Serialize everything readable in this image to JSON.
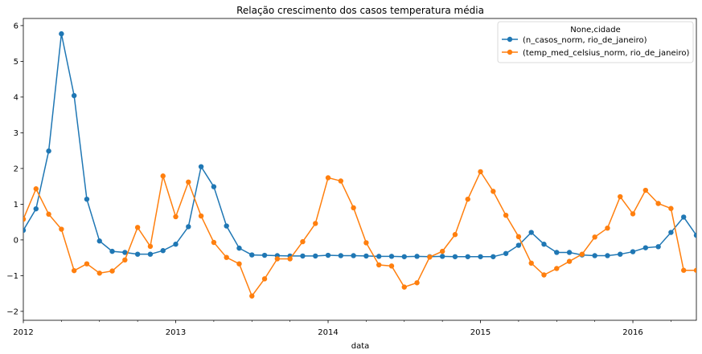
{
  "chart_data": {
    "type": "line",
    "title": "Relação crescimento dos casos temperatura média",
    "xlabel": "data",
    "ylabel": "",
    "x_start": "2012-01",
    "x_ticks": [
      "2012",
      "2013",
      "2014",
      "2015",
      "2016"
    ],
    "ylim": [
      -2.25,
      6.2
    ],
    "y_ticks": [
      -2,
      -1,
      0,
      1,
      2,
      3,
      4,
      5,
      6
    ],
    "grid": false,
    "legend": {
      "title": "None,cidade",
      "position": "top-right"
    },
    "series": [
      {
        "name": "(n_casos_norm, rio_de_janeiro)",
        "color": "#1f77b4",
        "marker": "circle",
        "values": [
          0.27,
          0.87,
          2.49,
          5.77,
          4.04,
          1.14,
          -0.03,
          -0.32,
          -0.35,
          -0.4,
          -0.4,
          -0.3,
          -0.12,
          0.37,
          2.05,
          1.49,
          0.39,
          -0.23,
          -0.42,
          -0.43,
          -0.44,
          -0.45,
          -0.45,
          -0.45,
          -0.43,
          -0.44,
          -0.44,
          -0.45,
          -0.46,
          -0.46,
          -0.47,
          -0.46,
          -0.47,
          -0.46,
          -0.47,
          -0.47,
          -0.47,
          -0.47,
          -0.38,
          -0.15,
          0.21,
          -0.12,
          -0.35,
          -0.35,
          -0.42,
          -0.44,
          -0.44,
          -0.4,
          -0.33,
          -0.22,
          -0.19,
          0.21,
          0.64,
          0.13
        ]
      },
      {
        "name": "(temp_med_celsius_norm, rio_de_janeiro)",
        "color": "#ff7f0e",
        "marker": "circle",
        "values": [
          0.58,
          1.43,
          0.72,
          0.3,
          -0.86,
          -0.67,
          -0.93,
          -0.87,
          -0.56,
          0.35,
          -0.18,
          1.79,
          0.65,
          1.62,
          0.67,
          -0.07,
          -0.49,
          -0.67,
          -1.57,
          -1.09,
          -0.53,
          -0.53,
          -0.05,
          0.46,
          1.74,
          1.65,
          0.9,
          -0.08,
          -0.7,
          -0.73,
          -1.32,
          -1.2,
          -0.48,
          -0.32,
          0.15,
          1.14,
          1.91,
          1.36,
          0.69,
          0.09,
          -0.65,
          -0.98,
          -0.8,
          -0.6,
          -0.4,
          0.08,
          0.33,
          1.21,
          0.73,
          1.39,
          1.02,
          0.88,
          -0.85,
          -0.85
        ]
      }
    ]
  }
}
